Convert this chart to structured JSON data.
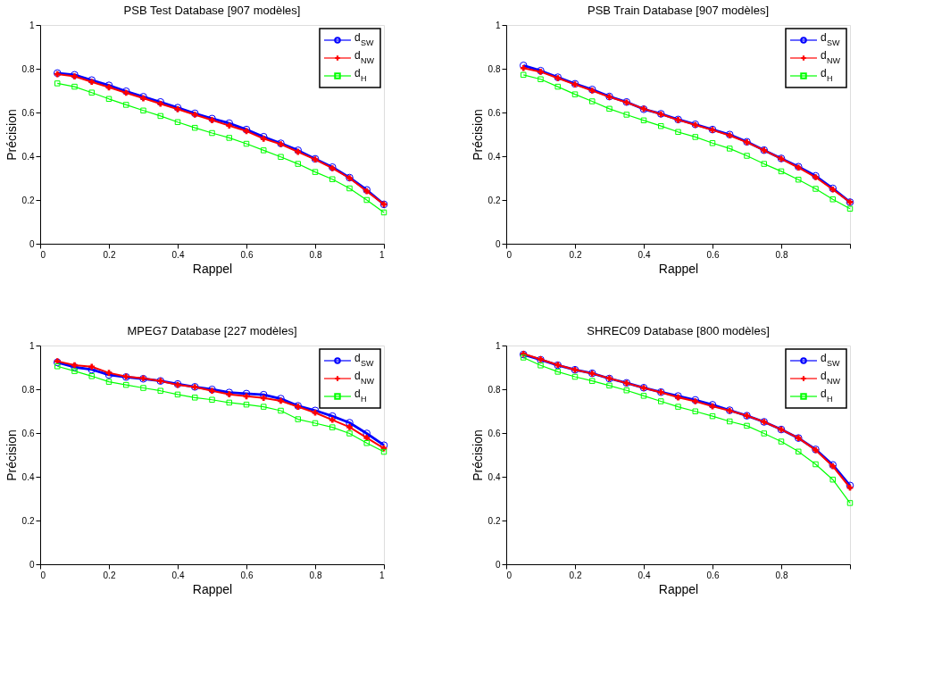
{
  "chart_data": [
    {
      "type": "line",
      "title": "PSB Test Database [907 modèles]",
      "xlabel": "Rappel",
      "ylabel": "Précision",
      "x": [
        0.05,
        0.1,
        0.15,
        0.2,
        0.25,
        0.3,
        0.35,
        0.4,
        0.45,
        0.5,
        0.55,
        0.6,
        0.65,
        0.7,
        0.75,
        0.8,
        0.85,
        0.9,
        0.95,
        1
      ],
      "xlim": [
        0,
        1
      ],
      "ylim": [
        0,
        1
      ],
      "xticks": [
        0,
        0.2,
        0.4,
        0.6,
        0.8,
        1
      ],
      "yticks": [
        0,
        0.2,
        0.4,
        0.6,
        0.8,
        1
      ],
      "grid": false,
      "legend": "top right",
      "line_style": "solid",
      "series": [
        {
          "name": "d$_{SW}$",
          "color": "#0000ff",
          "marker": "circle",
          "values": [
            0.78,
            0.772,
            0.748,
            0.724,
            0.697,
            0.672,
            0.648,
            0.622,
            0.596,
            0.572,
            0.551,
            0.522,
            0.489,
            0.459,
            0.427,
            0.388,
            0.35,
            0.302,
            0.246,
            0.18
          ]
        },
        {
          "name": "d$_{NW}$",
          "color": "#ff0000",
          "marker": "cross",
          "values": [
            0.775,
            0.765,
            0.74,
            0.715,
            0.69,
            0.665,
            0.64,
            0.615,
            0.59,
            0.565,
            0.54,
            0.515,
            0.48,
            0.455,
            0.42,
            0.385,
            0.345,
            0.3,
            0.24,
            0.18
          ]
        },
        {
          "name": "d$_{H}$",
          "color": "#00ff00",
          "marker": "square",
          "values": [
            0.733,
            0.718,
            0.691,
            0.662,
            0.635,
            0.609,
            0.584,
            0.556,
            0.53,
            0.506,
            0.484,
            0.457,
            0.427,
            0.397,
            0.365,
            0.328,
            0.295,
            0.253,
            0.2,
            0.143
          ]
        }
      ]
    },
    {
      "type": "line",
      "title": "PSB Train Database [907 modèles]",
      "xlabel": "Rappel",
      "ylabel": "Précision",
      "x": [
        0.05,
        0.1,
        0.15,
        0.2,
        0.25,
        0.3,
        0.35,
        0.4,
        0.45,
        0.5,
        0.55,
        0.6,
        0.65,
        0.7,
        0.75,
        0.8,
        0.85,
        0.9,
        0.95,
        1
      ],
      "xlim": [
        0,
        1
      ],
      "ylim": [
        0,
        1
      ],
      "xticks": [
        0,
        0.2,
        0.4,
        0.6,
        0.8,
        {
          "value": 1,
          "label": null
        }
      ],
      "yticks": [
        0,
        0.2,
        0.4,
        0.6,
        0.8,
        1
      ],
      "grid": false,
      "legend": "top right",
      "line_style": "solid",
      "series": [
        {
          "name": "d$_{SW}$",
          "color": "#0000ff",
          "marker": "circle",
          "values": [
            0.815,
            0.791,
            0.761,
            0.731,
            0.705,
            0.673,
            0.648,
            0.615,
            0.594,
            0.568,
            0.546,
            0.522,
            0.499,
            0.466,
            0.428,
            0.39,
            0.352,
            0.31,
            0.253,
            0.19
          ]
        },
        {
          "name": "d$_{NW}$",
          "color": "#ff0000",
          "marker": "cross",
          "values": [
            0.803,
            0.786,
            0.757,
            0.728,
            0.7,
            0.671,
            0.646,
            0.617,
            0.592,
            0.566,
            0.543,
            0.52,
            0.495,
            0.464,
            0.427,
            0.388,
            0.348,
            0.304,
            0.248,
            0.19
          ]
        },
        {
          "name": "d$_{H}$",
          "color": "#00ff00",
          "marker": "square",
          "values": [
            0.772,
            0.752,
            0.718,
            0.683,
            0.651,
            0.617,
            0.59,
            0.564,
            0.538,
            0.511,
            0.488,
            0.46,
            0.435,
            0.402,
            0.365,
            0.331,
            0.293,
            0.251,
            0.203,
            0.16
          ]
        }
      ]
    },
    {
      "type": "line",
      "title": "MPEG7 Database [227 modèles]",
      "xlabel": "Rappel",
      "ylabel": "Précision",
      "x": [
        0.05,
        0.1,
        0.15,
        0.2,
        0.25,
        0.3,
        0.35,
        0.4,
        0.45,
        0.5,
        0.55,
        0.6,
        0.65,
        0.7,
        0.75,
        0.8,
        0.85,
        0.9,
        0.95,
        1
      ],
      "xlim": [
        0,
        1
      ],
      "ylim": [
        0,
        1
      ],
      "xticks": [
        0,
        0.2,
        0.4,
        0.6,
        0.8,
        1
      ],
      "yticks": [
        0,
        0.2,
        0.4,
        0.6,
        0.8,
        1
      ],
      "grid": false,
      "legend": "top right",
      "line_style": "solid",
      "series": [
        {
          "name": "d$_{SW}$",
          "color": "#0000ff",
          "marker": "circle",
          "values": [
            0.923,
            0.901,
            0.89,
            0.866,
            0.856,
            0.848,
            0.838,
            0.824,
            0.811,
            0.799,
            0.785,
            0.78,
            0.775,
            0.757,
            0.724,
            0.703,
            0.677,
            0.647,
            0.598,
            0.544
          ]
        },
        {
          "name": "d$_{NW}$",
          "color": "#ff0000",
          "marker": "cross",
          "values": [
            0.928,
            0.91,
            0.903,
            0.875,
            0.858,
            0.85,
            0.838,
            0.82,
            0.81,
            0.793,
            0.777,
            0.768,
            0.76,
            0.747,
            0.72,
            0.693,
            0.66,
            0.627,
            0.578,
            0.53
          ]
        },
        {
          "name": "d$_{H}$",
          "color": "#00ff00",
          "marker": "square",
          "values": [
            0.905,
            0.883,
            0.86,
            0.834,
            0.82,
            0.806,
            0.793,
            0.776,
            0.762,
            0.752,
            0.739,
            0.73,
            0.72,
            0.702,
            0.663,
            0.645,
            0.626,
            0.598,
            0.554,
            0.514
          ]
        }
      ]
    },
    {
      "type": "line",
      "title": "SHREC09 Database [800 modèles]",
      "xlabel": "Rappel",
      "ylabel": "Précision",
      "x": [
        0.05,
        0.1,
        0.15,
        0.2,
        0.25,
        0.3,
        0.35,
        0.4,
        0.45,
        0.5,
        0.55,
        0.6,
        0.65,
        0.7,
        0.75,
        0.8,
        0.85,
        0.9,
        0.95,
        1
      ],
      "xlim": [
        0,
        1
      ],
      "ylim": [
        0,
        1
      ],
      "xticks": [
        0,
        0.2,
        0.4,
        0.6,
        0.8,
        {
          "value": 1,
          "label": null
        }
      ],
      "yticks": [
        0,
        0.2,
        0.4,
        0.6,
        0.8,
        1
      ],
      "grid": false,
      "legend": "top right",
      "line_style": "solid",
      "series": [
        {
          "name": "d$_{SW}$",
          "color": "#0000ff",
          "marker": "circle",
          "values": [
            0.959,
            0.935,
            0.91,
            0.889,
            0.873,
            0.849,
            0.829,
            0.807,
            0.787,
            0.769,
            0.751,
            0.729,
            0.704,
            0.679,
            0.651,
            0.616,
            0.577,
            0.525,
            0.454,
            0.36
          ]
        },
        {
          "name": "d$_{NW}$",
          "color": "#ff0000",
          "marker": "cross",
          "values": [
            0.962,
            0.937,
            0.911,
            0.889,
            0.872,
            0.85,
            0.828,
            0.806,
            0.786,
            0.763,
            0.745,
            0.722,
            0.702,
            0.679,
            0.651,
            0.616,
            0.577,
            0.522,
            0.448,
            0.35
          ]
        },
        {
          "name": "d$_{H}$",
          "color": "#00ff00",
          "marker": "square",
          "values": [
            0.945,
            0.909,
            0.88,
            0.857,
            0.838,
            0.817,
            0.795,
            0.77,
            0.745,
            0.72,
            0.699,
            0.677,
            0.653,
            0.633,
            0.598,
            0.561,
            0.515,
            0.457,
            0.387,
            0.28
          ]
        }
      ]
    }
  ]
}
